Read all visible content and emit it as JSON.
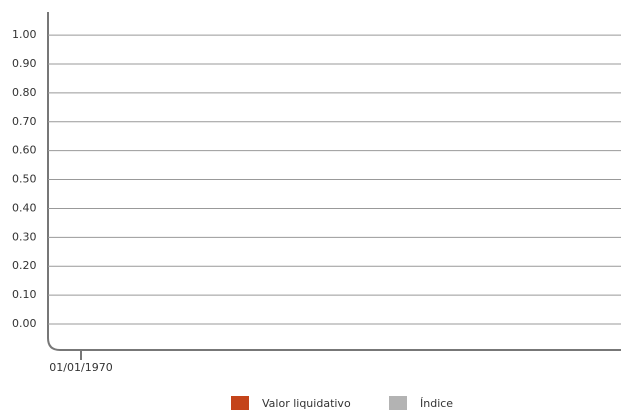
{
  "chart_data": {
    "type": "line",
    "categories": [
      "01/01/1970"
    ],
    "series": [
      {
        "name": "Valor liquidativo",
        "color": "#c4441a",
        "values": [
          null
        ]
      },
      {
        "name": "Índice",
        "color": "#b3b3b3",
        "values": [
          null
        ]
      }
    ],
    "ylim": [
      -0.09,
      1.08
    ],
    "yticks": [
      {
        "value": 0,
        "label": "0.00"
      },
      {
        "value": 0.1,
        "label": "0.10"
      },
      {
        "value": 0.2,
        "label": "0.20"
      },
      {
        "value": 0.3,
        "label": "0.30"
      },
      {
        "value": 0.4,
        "label": "0.40"
      },
      {
        "value": 0.5,
        "label": "0.50"
      },
      {
        "value": 0.6,
        "label": "0.60"
      },
      {
        "value": 0.7,
        "label": "0.70"
      },
      {
        "value": 0.8,
        "label": "0.80"
      },
      {
        "value": 0.9,
        "label": "0.90"
      },
      {
        "value": 1,
        "label": "1.00"
      }
    ],
    "grid": true
  }
}
